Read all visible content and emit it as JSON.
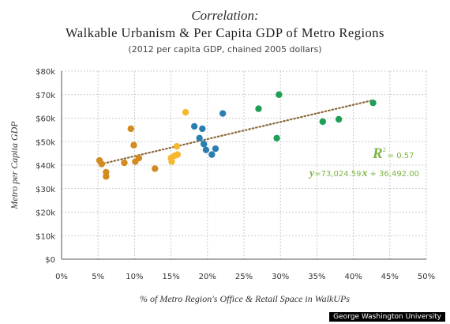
{
  "header": {
    "title_line1": "Correlation:",
    "title_line2": "Walkable Urbanism & Per Capita GDP of Metro Regions",
    "subtitle": "(2012 per capita GDP, chained 2005 dollars)"
  },
  "credit": "George Washington University",
  "chart_data": {
    "type": "scatter",
    "xlabel": "% of Metro Region's Office & Retail Space in WalkUPs",
    "ylabel": "Metro per Capita GDP",
    "xlim": [
      0,
      50
    ],
    "ylim": [
      0,
      80000
    ],
    "x_ticks": [
      "0%",
      "5%",
      "10%",
      "15%",
      "20%",
      "25%",
      "30%",
      "35%",
      "40%",
      "45%",
      "50%"
    ],
    "y_ticks": [
      "$0",
      "$10k",
      "$20k",
      "$30k",
      "$40k",
      "$50k",
      "$60k",
      "$70k",
      "$80k"
    ],
    "grid": true,
    "trendline": {
      "x": [
        5.3,
        42.5
      ],
      "y": [
        40400,
        67500
      ],
      "color": "#8b6a3c",
      "style": "dotted"
    },
    "annotations": {
      "r2_symbol": "R",
      "r2_exp": "2",
      "r2_value": "= 0.57",
      "eq_y": "y",
      "eq_mid": "=73,024.59",
      "eq_x": "x",
      "eq_rest": "+ 36,492.00",
      "color": "#7cb342"
    },
    "series": [
      {
        "color": "#d38a1f",
        "points": [
          [
            5.2,
            42000
          ],
          [
            5.5,
            40500
          ],
          [
            6.1,
            37000
          ],
          [
            6.1,
            35200
          ],
          [
            8.6,
            41000
          ],
          [
            9.5,
            55500
          ],
          [
            9.9,
            48500
          ],
          [
            10.1,
            41500
          ],
          [
            10.6,
            43000
          ],
          [
            12.8,
            38500
          ]
        ]
      },
      {
        "color": "#f5b82e",
        "points": [
          [
            15.0,
            43000
          ],
          [
            15.1,
            41500
          ],
          [
            15.5,
            44000
          ],
          [
            15.8,
            48000
          ],
          [
            15.9,
            44500
          ],
          [
            17.0,
            62500
          ]
        ]
      },
      {
        "color": "#2a7fb0",
        "points": [
          [
            18.2,
            56500
          ],
          [
            18.9,
            51500
          ],
          [
            19.3,
            55500
          ],
          [
            19.5,
            49000
          ],
          [
            19.8,
            46500
          ],
          [
            20.6,
            44500
          ],
          [
            21.1,
            47000
          ],
          [
            22.1,
            62000
          ]
        ]
      },
      {
        "color": "#1e9e57",
        "points": [
          [
            27.0,
            64000
          ],
          [
            29.5,
            51500
          ],
          [
            29.8,
            70000
          ],
          [
            35.8,
            58500
          ],
          [
            38.0,
            59500
          ],
          [
            42.7,
            66500
          ]
        ]
      }
    ]
  }
}
